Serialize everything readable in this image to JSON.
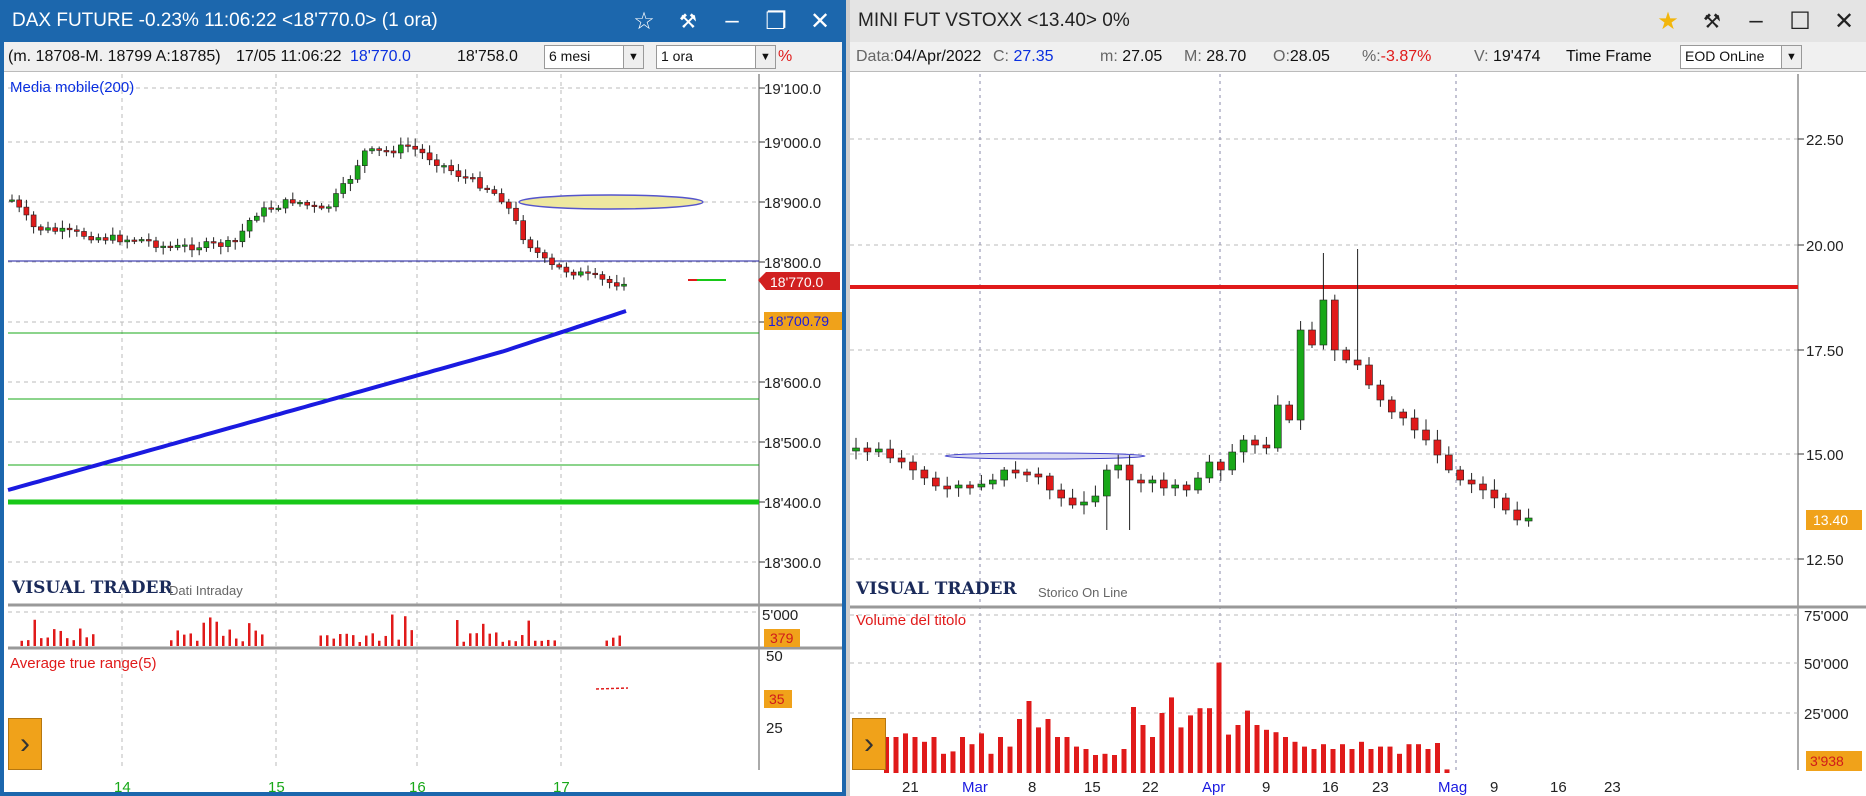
{
  "left": {
    "title": "DAX FUTURE -0.23% 11:06:22  <18'770.0> (1 ora)",
    "info": {
      "minmax": "(m. 18708-M. 18799 A:18785)",
      "datetime": "17/05 11:06:22",
      "last": "18'770.0",
      "ref": "18'758.0",
      "period": "6 mesi",
      "interval": "1 ora",
      "percent_mark": "%"
    },
    "indicator_label": "Media mobile(200)",
    "brand": "VISUAL TRADER",
    "brand_sub": "Dati Intraday",
    "price_ticks": [
      "19'100.0",
      "19'000.0",
      "18'900.0",
      "18'800.0",
      "18'700.0",
      "18'600.0",
      "18'500.0",
      "18'400.0",
      "18'300.0"
    ],
    "price_tag": "18'770.0",
    "ma_tag": "18'700.79",
    "volume_tick": "5'000",
    "volume_tag": "379",
    "atr_label": "Average true range(5)",
    "atr_ticks": [
      "50",
      "25"
    ],
    "atr_tag": "35",
    "x_ticks": [
      "14",
      "15",
      "16",
      "17"
    ]
  },
  "right": {
    "title": "MINI FUT VSTOXX <13.40> 0%",
    "info": {
      "data_label": "Data:",
      "data_value": "04/Apr/2022",
      "c_label": "C:",
      "c_value": "27.35",
      "m_label": "m:",
      "m_value": "27.05",
      "M_label": "M:",
      "M_value": "28.70",
      "o_label": "O:",
      "o_value": "28.05",
      "pct_label": "%:",
      "pct_value": "-3.87%",
      "v_label": "V:",
      "v_value": "19'474",
      "tf_label": "Time Frame",
      "tf_value": "EOD OnLine"
    },
    "brand": "VISUAL TRADER",
    "brand_sub": "Storico On Line",
    "price_ticks": [
      "22.50",
      "20.00",
      "17.50",
      "15.00",
      "12.50"
    ],
    "price_tag": "13.40",
    "volume_label": "Volume del titolo",
    "volume_ticks": [
      "75'000",
      "50'000",
      "25'000"
    ],
    "volume_tag": "3'938",
    "x_ticks": [
      "21",
      "Mar",
      "8",
      "15",
      "22",
      "Apr",
      "9",
      "16",
      "23",
      "Mag",
      "9",
      "16",
      "23"
    ]
  },
  "colors": {
    "up": "#18a818",
    "down": "#e01a1a",
    "ma": "#1a1ae0",
    "accent": "#f0a21a",
    "titlebar": "#1c67ad"
  }
}
